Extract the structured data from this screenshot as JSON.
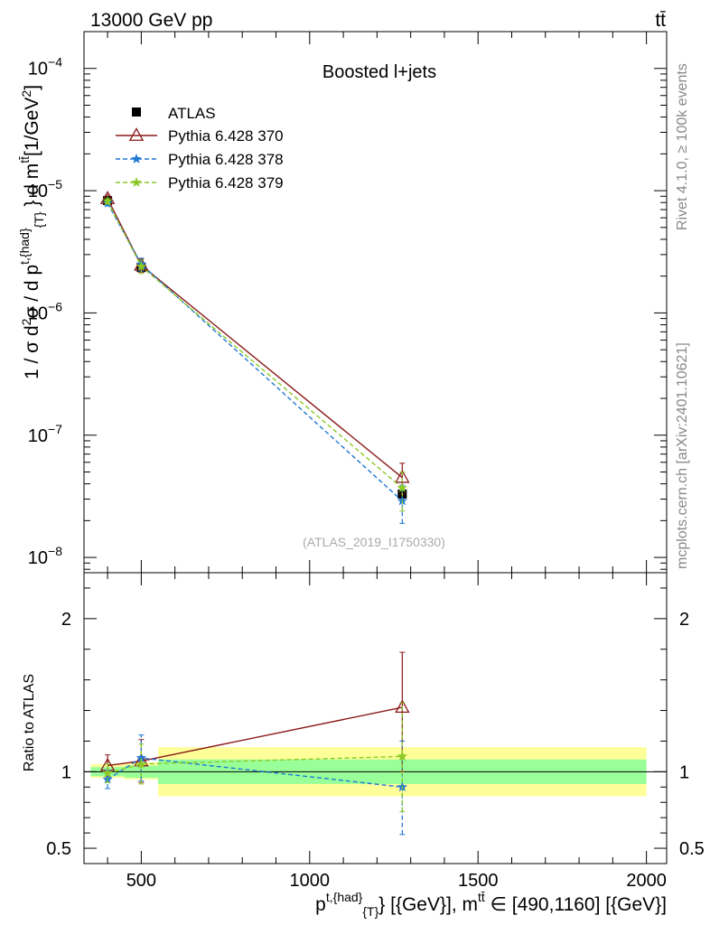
{
  "header": {
    "left": "13000 GeV pp",
    "right": "tt̄"
  },
  "side_labels": {
    "rivet": "Rivet 4.1.0, ≥ 100k events",
    "mcplots": "mcplots.cern.ch [arXiv:2401.10621]"
  },
  "chart_data": [
    {
      "type": "line",
      "name": "main",
      "title": "Boosted l+jets",
      "watermark": "(ATLAS_2019_I1750330)",
      "ylabel": "1 / σ d²σ / d p^{t,{had}}_{T} d m^{t̄t}[1/GeV²]",
      "yscale": "log",
      "ylim": [
        7.5e-09,
        0.0002
      ],
      "xlim": [
        330,
        2060
      ],
      "y_ticks": [
        {
          "value": 0.0001,
          "label": "10",
          "exp": "−4"
        },
        {
          "value": 1e-05,
          "label": "10",
          "exp": "−5"
        },
        {
          "value": 1e-06,
          "label": "10",
          "exp": "−6"
        },
        {
          "value": 1e-07,
          "label": "10",
          "exp": "−7"
        },
        {
          "value": 1e-08,
          "label": "10",
          "exp": "−8"
        }
      ],
      "legend_position": "top-left",
      "data": {
        "name": "ATLAS",
        "x": [
          400,
          500,
          1275
        ],
        "y": [
          8.3e-06,
          2.35e-06,
          3.3e-08
        ],
        "xerr": [
          [
            50,
            50
          ],
          [
            50,
            50
          ],
          [
            725,
            725
          ]
        ],
        "band_inner": [
          [
            0.97,
            1.03
          ],
          [
            0.96,
            1.04
          ],
          [
            0.92,
            1.08
          ]
        ],
        "band_outer": [
          [
            0.96,
            1.05
          ],
          [
            0.95,
            1.06
          ],
          [
            0.84,
            1.16
          ]
        ]
      },
      "series": [
        {
          "name": "Pythia 6.428 370",
          "color": "#8b1a1a",
          "dash": "",
          "marker": "triangle-open",
          "x": [
            400,
            500,
            1275
          ],
          "y": [
            8.6e-06,
            2.45e-06,
            4.5e-08
          ],
          "yerr": [
            [
              6e-07,
              6e-07
            ],
            [
              3e-07,
              3e-07
            ],
            [
              1.2e-08,
              1.4e-08
            ]
          ]
        },
        {
          "name": "Pythia 6.428 378",
          "color": "#1f77d4",
          "dash": "5,3",
          "marker": "star",
          "x": [
            400,
            500,
            1275
          ],
          "y": [
            7.9e-06,
            2.5e-06,
            2.9e-08
          ],
          "yerr": [
            [
              4e-07,
              4e-07
            ],
            [
              3e-07,
              3e-07
            ],
            [
              1e-08,
              1e-08
            ]
          ]
        },
        {
          "name": "Pythia 6.428 379",
          "color": "#8ac926",
          "dash": "5,3",
          "marker": "star",
          "x": [
            400,
            500,
            1275
          ],
          "y": [
            8.2e-06,
            2.4e-06,
            3.7e-08
          ],
          "yerr": [
            [
              4e-07,
              4e-07
            ],
            [
              3e-07,
              3e-07
            ],
            [
              1.3e-08,
              1.3e-08
            ]
          ]
        }
      ]
    },
    {
      "type": "line",
      "name": "ratio",
      "ylabel": "Ratio to ATLAS",
      "ylim": [
        0.4,
        2.3
      ],
      "xlim": [
        330,
        2060
      ],
      "y_ticks": [
        {
          "value": 2,
          "label": "2"
        },
        {
          "value": 1,
          "label": "1"
        },
        {
          "value": 0.5,
          "label": "0.5"
        }
      ],
      "x_ticks": [
        {
          "value": 500,
          "label": "500"
        },
        {
          "value": 1000,
          "label": "1000"
        },
        {
          "value": 1500,
          "label": "1500"
        },
        {
          "value": 2000,
          "label": "2000"
        }
      ],
      "xlabel": "p^{t,{had}}_{T} [{GeV}], m^{t̄t} ∈ [490,1160] [{GeV}]",
      "series": [
        {
          "name": "Pythia 6.428 370",
          "x": [
            400,
            500,
            1275
          ],
          "y": [
            1.04,
            1.07,
            1.42
          ],
          "yerr": [
            [
              0.07,
              0.07
            ],
            [
              0.14,
              0.14
            ],
            [
              0.42,
              0.36
            ]
          ]
        },
        {
          "name": "Pythia 6.428 378",
          "x": [
            400,
            500,
            1275
          ],
          "y": [
            0.95,
            1.09,
            0.9
          ],
          "yerr": [
            [
              0.06,
              0.06
            ],
            [
              0.15,
              0.15
            ],
            [
              0.31,
              0.3
            ]
          ]
        },
        {
          "name": "Pythia 6.428 379",
          "x": [
            400,
            500,
            1275
          ],
          "y": [
            0.99,
            1.05,
            1.1
          ],
          "yerr": [
            [
              0.06,
              0.06
            ],
            [
              0.13,
              0.13
            ],
            [
              0.36,
              0.35
            ]
          ]
        }
      ]
    }
  ]
}
